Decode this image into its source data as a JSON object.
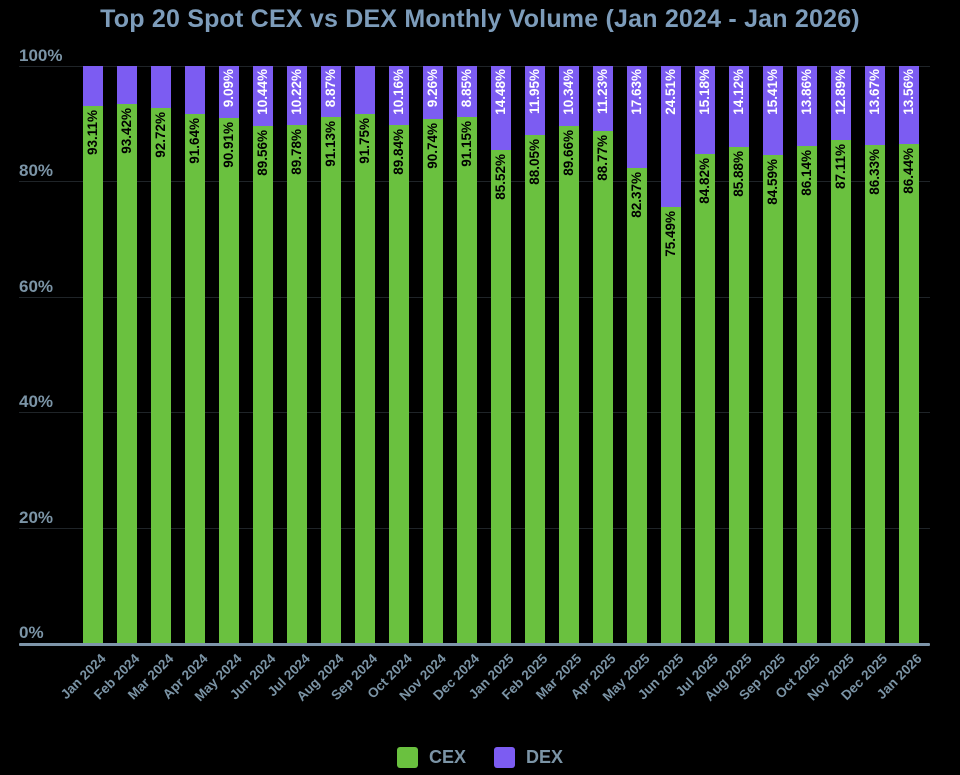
{
  "title": "Top 20 Spot CEX vs DEX Monthly Volume (Jan 2024 - Jan 2026)",
  "colors": {
    "background": "#000000",
    "cex": "#6ac13f",
    "dex": "#7c5cf2",
    "cex_label_text": "#000000",
    "dex_label_text": "#ffffff",
    "axis_text": "#7b94a6",
    "title_text": "#7d9cba",
    "axis_line": "#7e95a9",
    "grid_line": "#1f2428"
  },
  "legend": [
    {
      "label": "CEX",
      "color": "#6ac13f"
    },
    {
      "label": "DEX",
      "color": "#7c5cf2"
    }
  ],
  "chart_data": {
    "type": "bar",
    "stacked": true,
    "title": "Top 20 Spot CEX vs DEX Monthly Volume (Jan 2024 - Jan 2026)",
    "unit": "%",
    "ylim": [
      0,
      100
    ],
    "y_ticks": [
      {
        "label": "0%",
        "value": 0
      },
      {
        "label": "20%",
        "value": 20
      },
      {
        "label": "40%",
        "value": 40
      },
      {
        "label": "60%",
        "value": 60
      },
      {
        "label": "80%",
        "value": 80
      },
      {
        "label": "100%",
        "value": 100
      }
    ],
    "grid": true,
    "legend_position": "bottom",
    "label_rotation": "vertical",
    "dex_label_min_value": 8.5,
    "categories": [
      "Jan 2024",
      "Feb 2024",
      "Mar 2024",
      "Apr 2024",
      "May 2024",
      "Jun 2024",
      "Jul 2024",
      "Aug 2024",
      "Sep 2024",
      "Oct 2024",
      "Nov 2024",
      "Dec 2024",
      "Jan 2025",
      "Feb 2025",
      "Mar 2025",
      "Apr 2025",
      "May 2025",
      "Jun 2025",
      "Jul 2025",
      "Aug 2025",
      "Sep 2025",
      "Oct 2025",
      "Nov 2025",
      "Dec 2025",
      "Jan 2026"
    ],
    "series": [
      {
        "name": "CEX",
        "values": [
          93.11,
          93.42,
          92.72,
          91.64,
          90.91,
          89.56,
          89.78,
          91.13,
          91.75,
          89.84,
          90.74,
          91.15,
          85.52,
          88.05,
          89.66,
          88.77,
          82.37,
          75.49,
          84.82,
          85.88,
          84.59,
          86.14,
          87.11,
          86.33,
          86.44
        ]
      },
      {
        "name": "DEX",
        "values": [
          6.89,
          6.58,
          7.28,
          8.36,
          9.09,
          10.44,
          10.22,
          8.87,
          8.25,
          10.16,
          9.26,
          8.85,
          14.48,
          11.95,
          10.34,
          11.23,
          17.63,
          24.51,
          15.18,
          14.12,
          15.41,
          13.86,
          12.89,
          13.67,
          13.56
        ]
      }
    ]
  }
}
